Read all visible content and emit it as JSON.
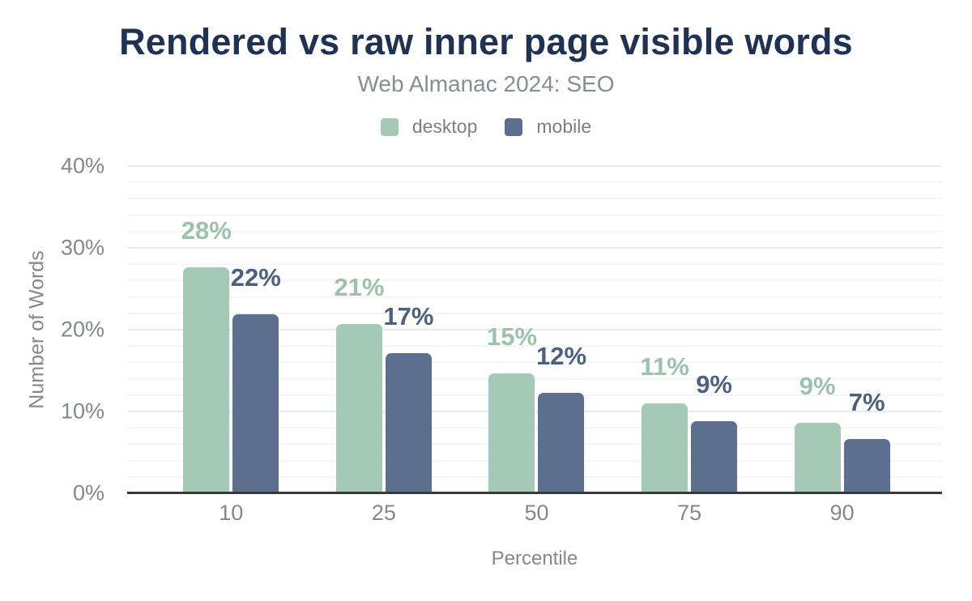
{
  "chart_data": {
    "type": "bar",
    "title": "Rendered vs raw inner page visible words",
    "subtitle": "Web Almanac 2024: SEO",
    "xlabel": "Percentile",
    "ylabel": "Number of Words",
    "categories": [
      "10",
      "25",
      "50",
      "75",
      "90"
    ],
    "series": [
      {
        "name": "desktop",
        "color": "#a4c9b4",
        "label_color": "#9cc2ac",
        "values": [
          27.6,
          20.7,
          14.7,
          11.0,
          8.6
        ],
        "labels": [
          "28%",
          "21%",
          "15%",
          "11%",
          "9%"
        ]
      },
      {
        "name": "mobile",
        "color": "#5c6f8e",
        "label_color": "#4d6080",
        "values": [
          21.9,
          17.1,
          12.3,
          8.8,
          6.6
        ],
        "labels": [
          "22%",
          "17%",
          "12%",
          "9%",
          "7%"
        ]
      }
    ],
    "ylim": [
      0,
      40
    ],
    "y_ticks": [
      {
        "value": 0,
        "label": "0%"
      },
      {
        "value": 10,
        "label": "10%"
      },
      {
        "value": 20,
        "label": "20%"
      },
      {
        "value": 30,
        "label": "30%"
      },
      {
        "value": 40,
        "label": "40%"
      }
    ],
    "grid": {
      "major_step": 10,
      "minor_step": 2,
      "grid_on": true
    },
    "legend_position": "top",
    "annotations": "value labels above each bar"
  },
  "colors": {
    "background": "#ffffff",
    "title_text": "#1f3253",
    "muted_text": "#83888f",
    "legend_text": "#7a7f87",
    "axis_line": "#37393c",
    "grid_major": "#e8eaec",
    "grid_minor": "#f4f5f6"
  }
}
